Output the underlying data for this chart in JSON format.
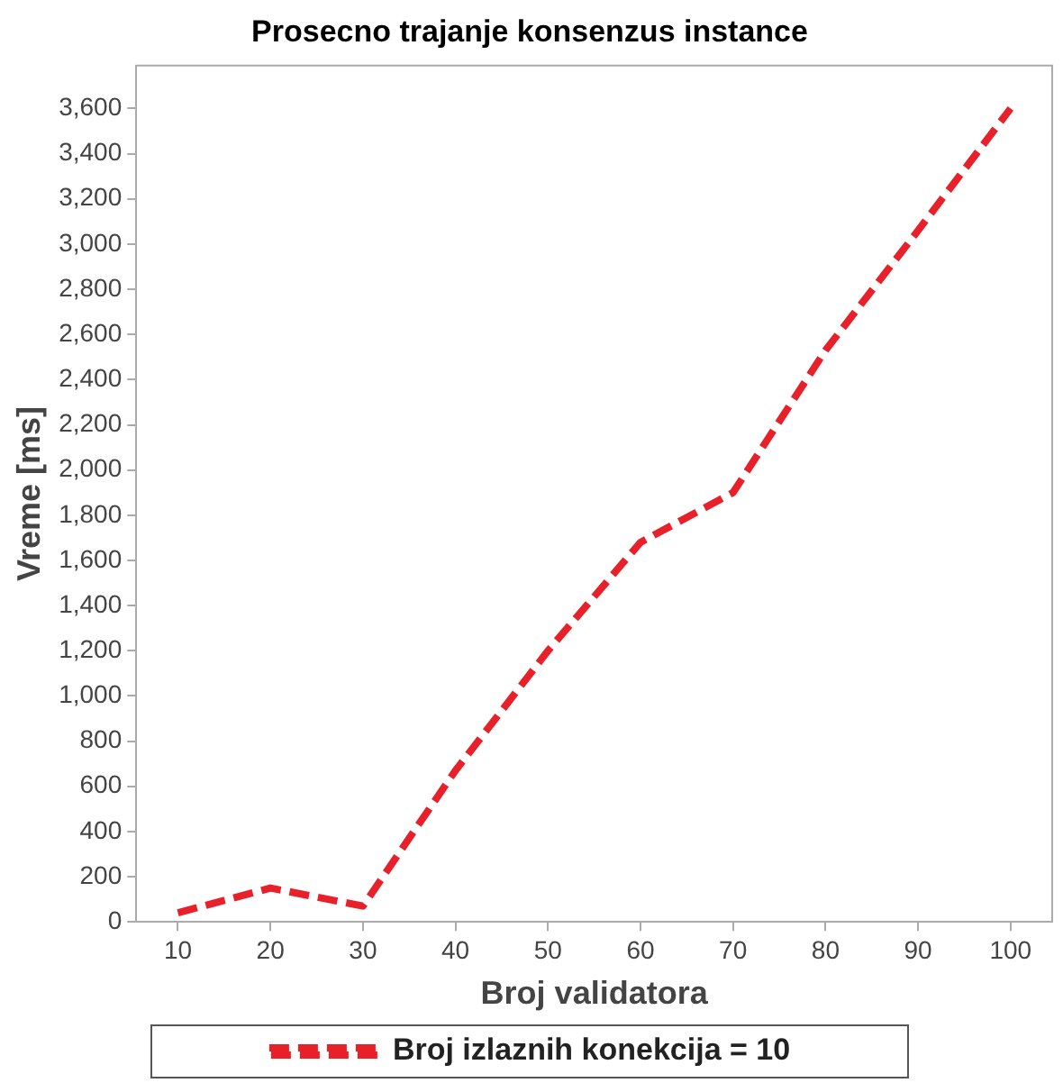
{
  "chart_data": {
    "type": "line",
    "title": "Prosecno trajanje konsenzus instance",
    "xlabel": "Broj validatora",
    "ylabel": "Vreme [ms]",
    "x": [
      10,
      20,
      30,
      40,
      50,
      60,
      70,
      80,
      90,
      100
    ],
    "series": [
      {
        "name": "Broj izlaznih konekcija = 10",
        "color": "#e8202a",
        "values": [
          40,
          150,
          70,
          670,
          1200,
          1680,
          1900,
          2530,
          3060,
          3600
        ]
      }
    ],
    "xlim": [
      5.5,
      104.5
    ],
    "xticks": [
      10,
      20,
      30,
      40,
      50,
      60,
      70,
      80,
      90,
      100
    ],
    "ylim": [
      0,
      3790
    ],
    "yticks": [
      0,
      200,
      400,
      600,
      800,
      {
        "value": 1000,
        "label": "1,000"
      },
      {
        "value": 1200,
        "label": "1,200"
      },
      {
        "value": 1400,
        "label": "1,400"
      },
      {
        "value": 1600,
        "label": "1,600"
      },
      {
        "value": 1800,
        "label": "1,800"
      },
      {
        "value": 2000,
        "label": "2,000"
      },
      {
        "value": 2200,
        "label": "2,200"
      },
      {
        "value": 2400,
        "label": "2,400"
      },
      {
        "value": 2600,
        "label": "2,600"
      },
      {
        "value": 2800,
        "label": "2,800"
      },
      {
        "value": 3000,
        "label": "3,000"
      },
      {
        "value": 3200,
        "label": "3,200"
      },
      {
        "value": 3400,
        "label": "3,400"
      },
      {
        "value": 3600,
        "label": "3,600"
      }
    ],
    "grid": false,
    "legend": "bottom",
    "marker": "none",
    "line_style": "dashed"
  }
}
